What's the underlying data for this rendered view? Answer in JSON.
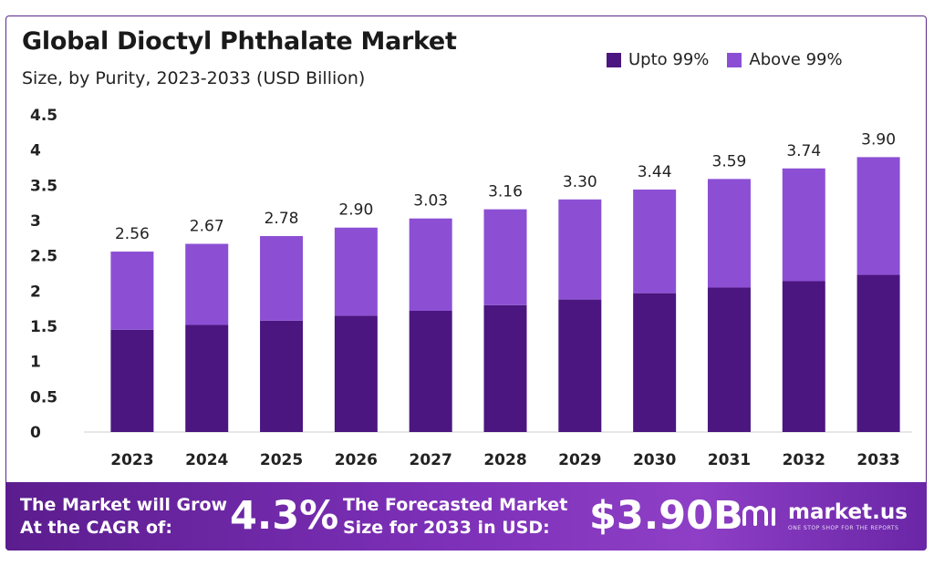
{
  "colors": {
    "upto": "#4b1680",
    "above": "#8c4fd4",
    "axis": "#222222"
  },
  "chart_data": {
    "type": "bar",
    "stacked": true,
    "title": "Global Dioctyl Phthalate Market",
    "subtitle": "Size, by Purity, 2023-2033 (USD Billion)",
    "categories": [
      "2023",
      "2024",
      "2025",
      "2026",
      "2027",
      "2028",
      "2029",
      "2030",
      "2031",
      "2032",
      "2033"
    ],
    "series": [
      {
        "name": "Upto 99%",
        "values": [
          1.45,
          1.52,
          1.58,
          1.65,
          1.72,
          1.8,
          1.88,
          1.97,
          2.05,
          2.14,
          2.23
        ]
      },
      {
        "name": "Above 99%",
        "values": [
          1.11,
          1.15,
          1.2,
          1.25,
          1.31,
          1.36,
          1.42,
          1.47,
          1.54,
          1.6,
          1.67
        ]
      }
    ],
    "totals": [
      "2.56",
      "2.67",
      "2.78",
      "2.90",
      "3.03",
      "3.16",
      "3.30",
      "3.44",
      "3.59",
      "3.74",
      "3.90"
    ],
    "yticks": [
      "0",
      "0.5",
      "1",
      "1.5",
      "2",
      "2.5",
      "3",
      "3.5",
      "4",
      "4.5"
    ],
    "ylim": [
      0,
      4.5
    ],
    "grid": false,
    "legend_position": "top-right"
  },
  "banner": {
    "grow_line1": "The Market will Grow",
    "grow_line2": "At the CAGR of:",
    "cagr": "4.3%",
    "forecast_line1": "The Forecasted Market",
    "forecast_line2": "Size for 2033 in USD:",
    "forecast_value": "$3.90B",
    "logo_name": "market.us",
    "logo_tagline": "ONE STOP SHOP FOR THE REPORTS"
  }
}
